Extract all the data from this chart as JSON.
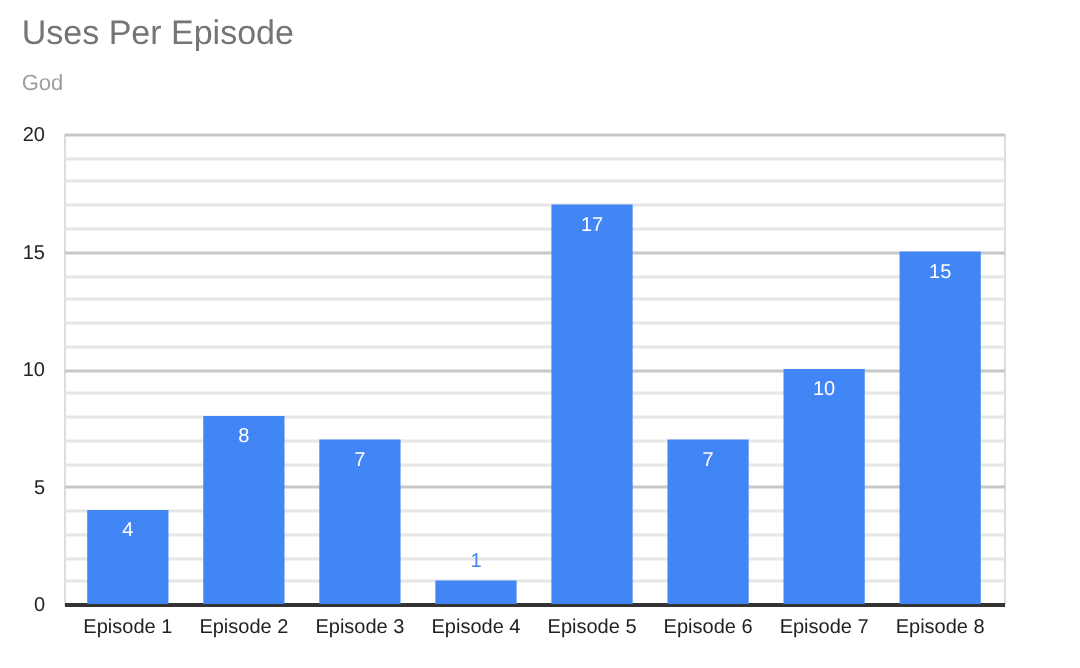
{
  "chart_data": {
    "type": "bar",
    "title": "Uses Per Episode",
    "subtitle": "God",
    "categories": [
      "Episode 1",
      "Episode 2",
      "Episode 3",
      "Episode 4",
      "Episode 5",
      "Episode 6",
      "Episode 7",
      "Episode 8"
    ],
    "values": [
      4,
      8,
      7,
      1,
      17,
      7,
      10,
      15
    ],
    "color": "#4285f4",
    "ylim": [
      0,
      20
    ],
    "yticks": [
      0,
      {
        "value": 1,
        "label": null
      },
      {
        "value": 2,
        "label": null
      },
      {
        "value": 3,
        "label": null
      },
      {
        "value": 4,
        "label": null
      },
      5,
      {
        "value": 6,
        "label": null
      },
      {
        "value": 7,
        "label": null
      },
      {
        "value": 8,
        "label": null
      },
      {
        "value": 9,
        "label": null
      },
      10,
      {
        "value": 11,
        "label": null
      },
      {
        "value": 12,
        "label": null
      },
      {
        "value": 13,
        "label": null
      },
      {
        "value": 14,
        "label": null
      },
      15,
      {
        "value": 16,
        "label": null
      },
      {
        "value": 17,
        "label": null
      },
      {
        "value": 18,
        "label": null
      },
      {
        "value": 19,
        "label": null
      },
      20
    ],
    "grid": true,
    "data_labels": true
  }
}
